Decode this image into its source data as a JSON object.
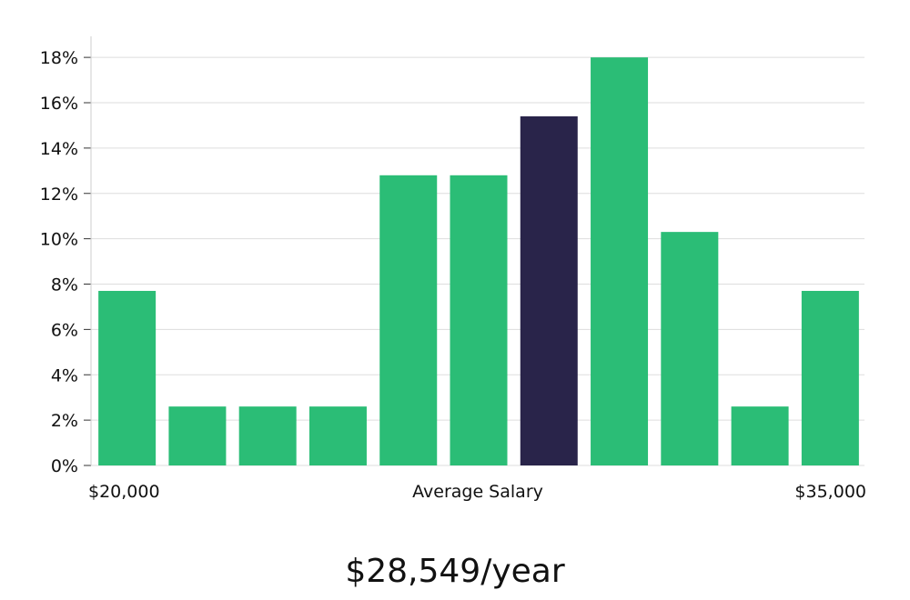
{
  "chart_data": {
    "type": "bar",
    "title": "",
    "xlabel": "Average Salary",
    "ylabel": "",
    "x_range_labels": {
      "min": "$20,000",
      "max": "$35,000"
    },
    "y_ticks": [
      0,
      2,
      4,
      6,
      8,
      10,
      12,
      14,
      16,
      18
    ],
    "ylim": [
      0,
      19
    ],
    "y_tick_suffix": "%",
    "values": [
      7.7,
      2.6,
      2.6,
      2.6,
      12.8,
      12.8,
      15.4,
      18.0,
      10.3,
      2.6,
      7.7
    ],
    "highlight_index": 6,
    "colors": {
      "bar": "#2bbd76",
      "highlight": "#29244a",
      "grid": "#dddddd",
      "axis": "#cccccc"
    }
  },
  "summary": {
    "salary_text": "$28,549/year"
  }
}
